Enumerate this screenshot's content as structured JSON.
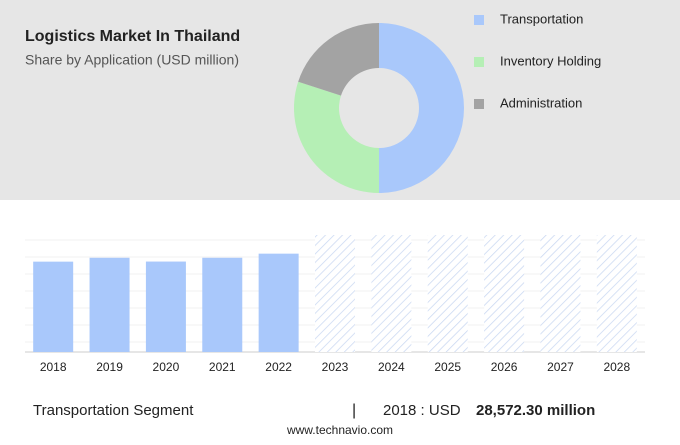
{
  "header": {
    "title": "Logistics Market In Thailand",
    "subtitle": "Share by Application (USD million)"
  },
  "chart_data": [
    {
      "type": "pie",
      "donut": true,
      "categories": [
        "Transportation",
        "Inventory Holding",
        "Administration"
      ],
      "values": [
        50,
        30,
        20
      ],
      "colors": [
        "#a9c8fb",
        "#b5efb5",
        "#a3a3a3"
      ]
    },
    {
      "type": "bar",
      "categories": [
        "2018",
        "2019",
        "2020",
        "2021",
        "2022",
        "2023",
        "2024",
        "2025",
        "2026",
        "2027",
        "2028"
      ],
      "values": [
        28572.3,
        29800,
        28600,
        29800,
        31100,
        null,
        null,
        null,
        null,
        null,
        null
      ],
      "color": "#a9c8fb",
      "ylim": [
        0,
        37000
      ]
    }
  ],
  "footer": {
    "segment": "Transportation Segment",
    "separator": "|",
    "year_label": "2018 : USD",
    "value": "28,572.30 million",
    "source": "www.technavio.com"
  }
}
